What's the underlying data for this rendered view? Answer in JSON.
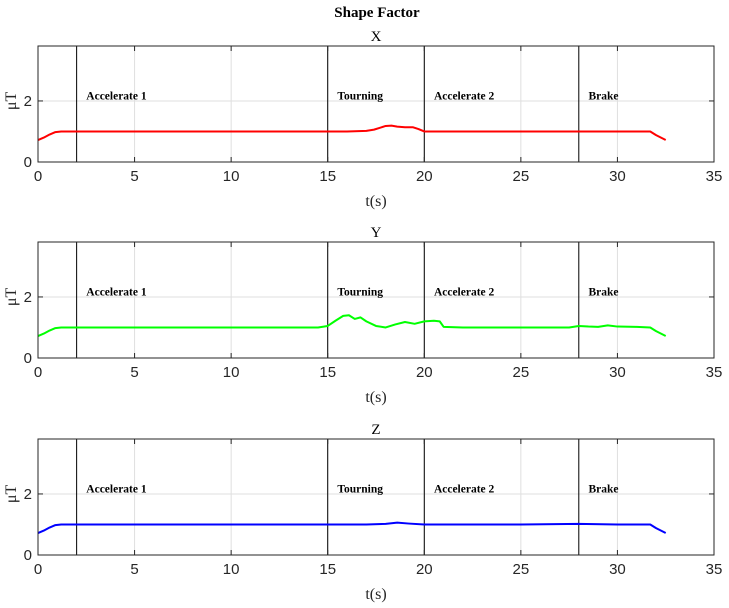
{
  "chart_data": {
    "type": "line",
    "title": "Shape Factor",
    "subplots": [
      {
        "title": "X",
        "xlabel": "t(s)",
        "ylabel": "μT",
        "xlim": [
          0,
          35
        ],
        "ylim": [
          0,
          3.8
        ],
        "xticks": [
          0,
          5,
          10,
          15,
          20,
          25,
          30,
          35
        ],
        "yticks": [
          0,
          2
        ],
        "grid": true,
        "color": "#ff0000",
        "phase_lines": [
          2,
          15,
          20,
          28
        ],
        "phase_labels": [
          {
            "text": "Accelerate 1",
            "x": 2.5,
            "y": 2.05
          },
          {
            "text": "Tourning",
            "x": 15.5,
            "y": 2.05
          },
          {
            "text": "Accelerate 2",
            "x": 20.5,
            "y": 2.05
          },
          {
            "text": "Brake",
            "x": 28.5,
            "y": 2.05
          }
        ],
        "x": [
          0,
          0.3,
          0.6,
          0.9,
          1.2,
          2,
          5,
          10,
          15,
          16,
          17,
          17.4,
          17.7,
          18,
          18.3,
          18.6,
          19,
          19.4,
          19.7,
          20,
          20.5,
          22,
          25,
          28,
          30,
          31,
          31.7,
          32,
          32.5
        ],
        "y": [
          0.72,
          0.8,
          0.9,
          0.98,
          1.0,
          1.0,
          1.0,
          1.0,
          1.0,
          1.0,
          1.02,
          1.06,
          1.12,
          1.18,
          1.19,
          1.16,
          1.14,
          1.14,
          1.08,
          1.0,
          1.0,
          1.0,
          1.0,
          1.0,
          1.0,
          1.0,
          1.0,
          0.88,
          0.72
        ]
      },
      {
        "title": "Y",
        "xlabel": "t(s)",
        "ylabel": "μT",
        "xlim": [
          0,
          35
        ],
        "ylim": [
          0,
          3.8
        ],
        "xticks": [
          0,
          5,
          10,
          15,
          20,
          25,
          30,
          35
        ],
        "yticks": [
          0,
          2
        ],
        "grid": true,
        "color": "#00ff00",
        "phase_lines": [
          2,
          15,
          20,
          28
        ],
        "phase_labels": [
          {
            "text": "Accelerate 1",
            "x": 2.5,
            "y": 2.05
          },
          {
            "text": "Tourning",
            "x": 15.5,
            "y": 2.05
          },
          {
            "text": "Accelerate 2",
            "x": 20.5,
            "y": 2.05
          },
          {
            "text": "Brake",
            "x": 28.5,
            "y": 2.05
          }
        ],
        "x": [
          0,
          0.3,
          0.6,
          0.9,
          1.2,
          2,
          5,
          10,
          14.5,
          15,
          15.4,
          15.8,
          16.1,
          16.4,
          16.7,
          17,
          17.5,
          18,
          18.5,
          19,
          19.5,
          20,
          20.5,
          20.8,
          21,
          22,
          25,
          27.5,
          28,
          28.5,
          29,
          29.5,
          30,
          31,
          31.7,
          32,
          32.5
        ],
        "y": [
          0.72,
          0.8,
          0.9,
          0.98,
          1.0,
          1.0,
          1.0,
          1.0,
          1.0,
          1.05,
          1.22,
          1.38,
          1.4,
          1.28,
          1.33,
          1.2,
          1.05,
          1.0,
          1.1,
          1.18,
          1.12,
          1.2,
          1.22,
          1.2,
          1.02,
          1.0,
          1.0,
          1.0,
          1.05,
          1.03,
          1.02,
          1.07,
          1.03,
          1.02,
          1.0,
          0.88,
          0.72
        ]
      },
      {
        "title": "Z",
        "xlabel": "t(s)",
        "ylabel": "μT",
        "xlim": [
          0,
          35
        ],
        "ylim": [
          0,
          3.8
        ],
        "xticks": [
          0,
          5,
          10,
          15,
          20,
          25,
          30,
          35
        ],
        "yticks": [
          0,
          2
        ],
        "grid": true,
        "color": "#0000ff",
        "phase_lines": [
          2,
          15,
          20,
          28
        ],
        "phase_labels": [
          {
            "text": "Accelerate 1",
            "x": 2.5,
            "y": 2.05
          },
          {
            "text": "Tourning",
            "x": 15.5,
            "y": 2.05
          },
          {
            "text": "Accelerate 2",
            "x": 20.5,
            "y": 2.05
          },
          {
            "text": "Brake",
            "x": 28.5,
            "y": 2.05
          }
        ],
        "x": [
          0,
          0.3,
          0.6,
          0.9,
          1.2,
          2,
          5,
          10,
          15,
          17,
          18,
          18.6,
          19.2,
          20,
          22,
          25,
          28,
          30,
          31,
          31.7,
          32,
          32.5
        ],
        "y": [
          0.72,
          0.8,
          0.9,
          0.98,
          1.0,
          1.0,
          1.0,
          1.0,
          1.0,
          1.0,
          1.02,
          1.06,
          1.03,
          1.0,
          1.0,
          1.0,
          1.02,
          1.0,
          1.0,
          1.0,
          0.88,
          0.72
        ]
      }
    ]
  }
}
